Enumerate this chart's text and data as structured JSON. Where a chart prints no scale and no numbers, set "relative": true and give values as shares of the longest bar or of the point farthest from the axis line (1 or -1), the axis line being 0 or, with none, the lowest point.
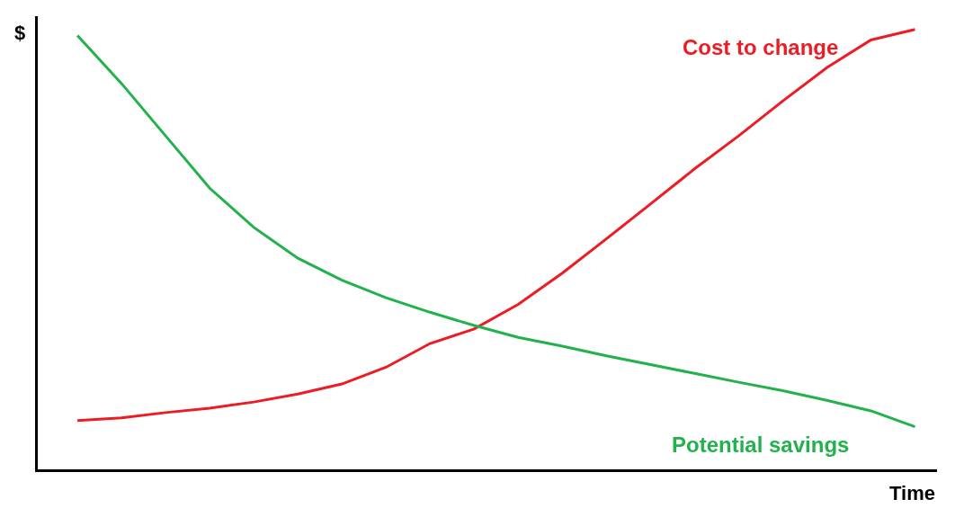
{
  "chart_data": {
    "type": "line",
    "relative": true,
    "xlabel": "Time",
    "ylabel": "$",
    "legend": false,
    "marker": "none",
    "line_style": "solid",
    "categories": [
      null,
      null,
      null,
      null,
      null,
      null,
      null,
      null,
      null,
      null,
      null,
      null,
      null,
      null,
      null,
      null,
      null,
      null,
      null,
      null
    ],
    "series": [
      {
        "name": "Cost to change",
        "color": "#ed1c24",
        "values": [
          0.111,
          0.117,
          0.129,
          0.139,
          0.153,
          0.171,
          0.194,
          0.232,
          0.286,
          0.319,
          0.375,
          0.446,
          0.524,
          0.603,
          0.683,
          0.758,
          0.837,
          0.913,
          0.976,
          1.0
        ]
      },
      {
        "name": "Potential savings",
        "color": "#22b14c",
        "values": [
          0.986,
          0.877,
          0.758,
          0.639,
          0.55,
          0.48,
          0.43,
          0.39,
          0.357,
          0.327,
          0.3,
          0.28,
          0.258,
          0.238,
          0.218,
          0.198,
          0.179,
          0.157,
          0.133,
          0.097
        ]
      }
    ]
  }
}
